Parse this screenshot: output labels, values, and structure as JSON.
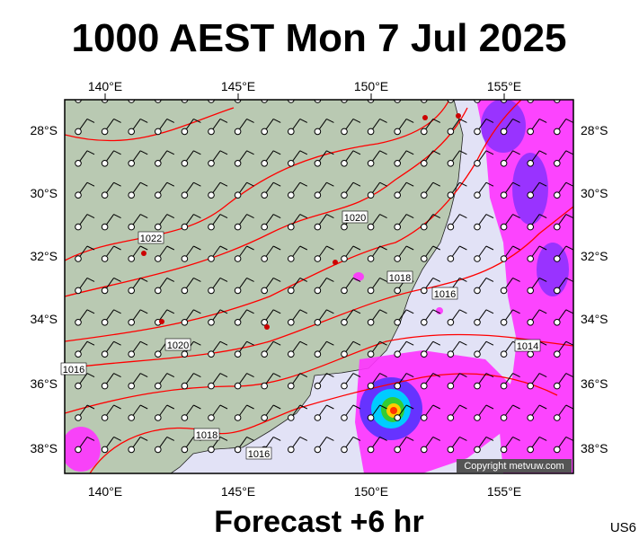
{
  "header": {
    "title": "1000 AEST Mon 7 Jul 2025"
  },
  "map": {
    "lon_labels": [
      "140°E",
      "145°E",
      "150°E",
      "155°E"
    ],
    "lat_labels": [
      "28°S",
      "30°S",
      "32°S",
      "34°S",
      "36°S",
      "38°S"
    ],
    "isobar_labels": [
      "1022",
      "1020",
      "1020",
      "1018",
      "1016",
      "1014",
      "1018",
      "1016",
      "1016"
    ],
    "copyright": "Copyright metvuw.com"
  },
  "footer": {
    "forecast": "Forecast +6 hr",
    "code": "US6"
  }
}
